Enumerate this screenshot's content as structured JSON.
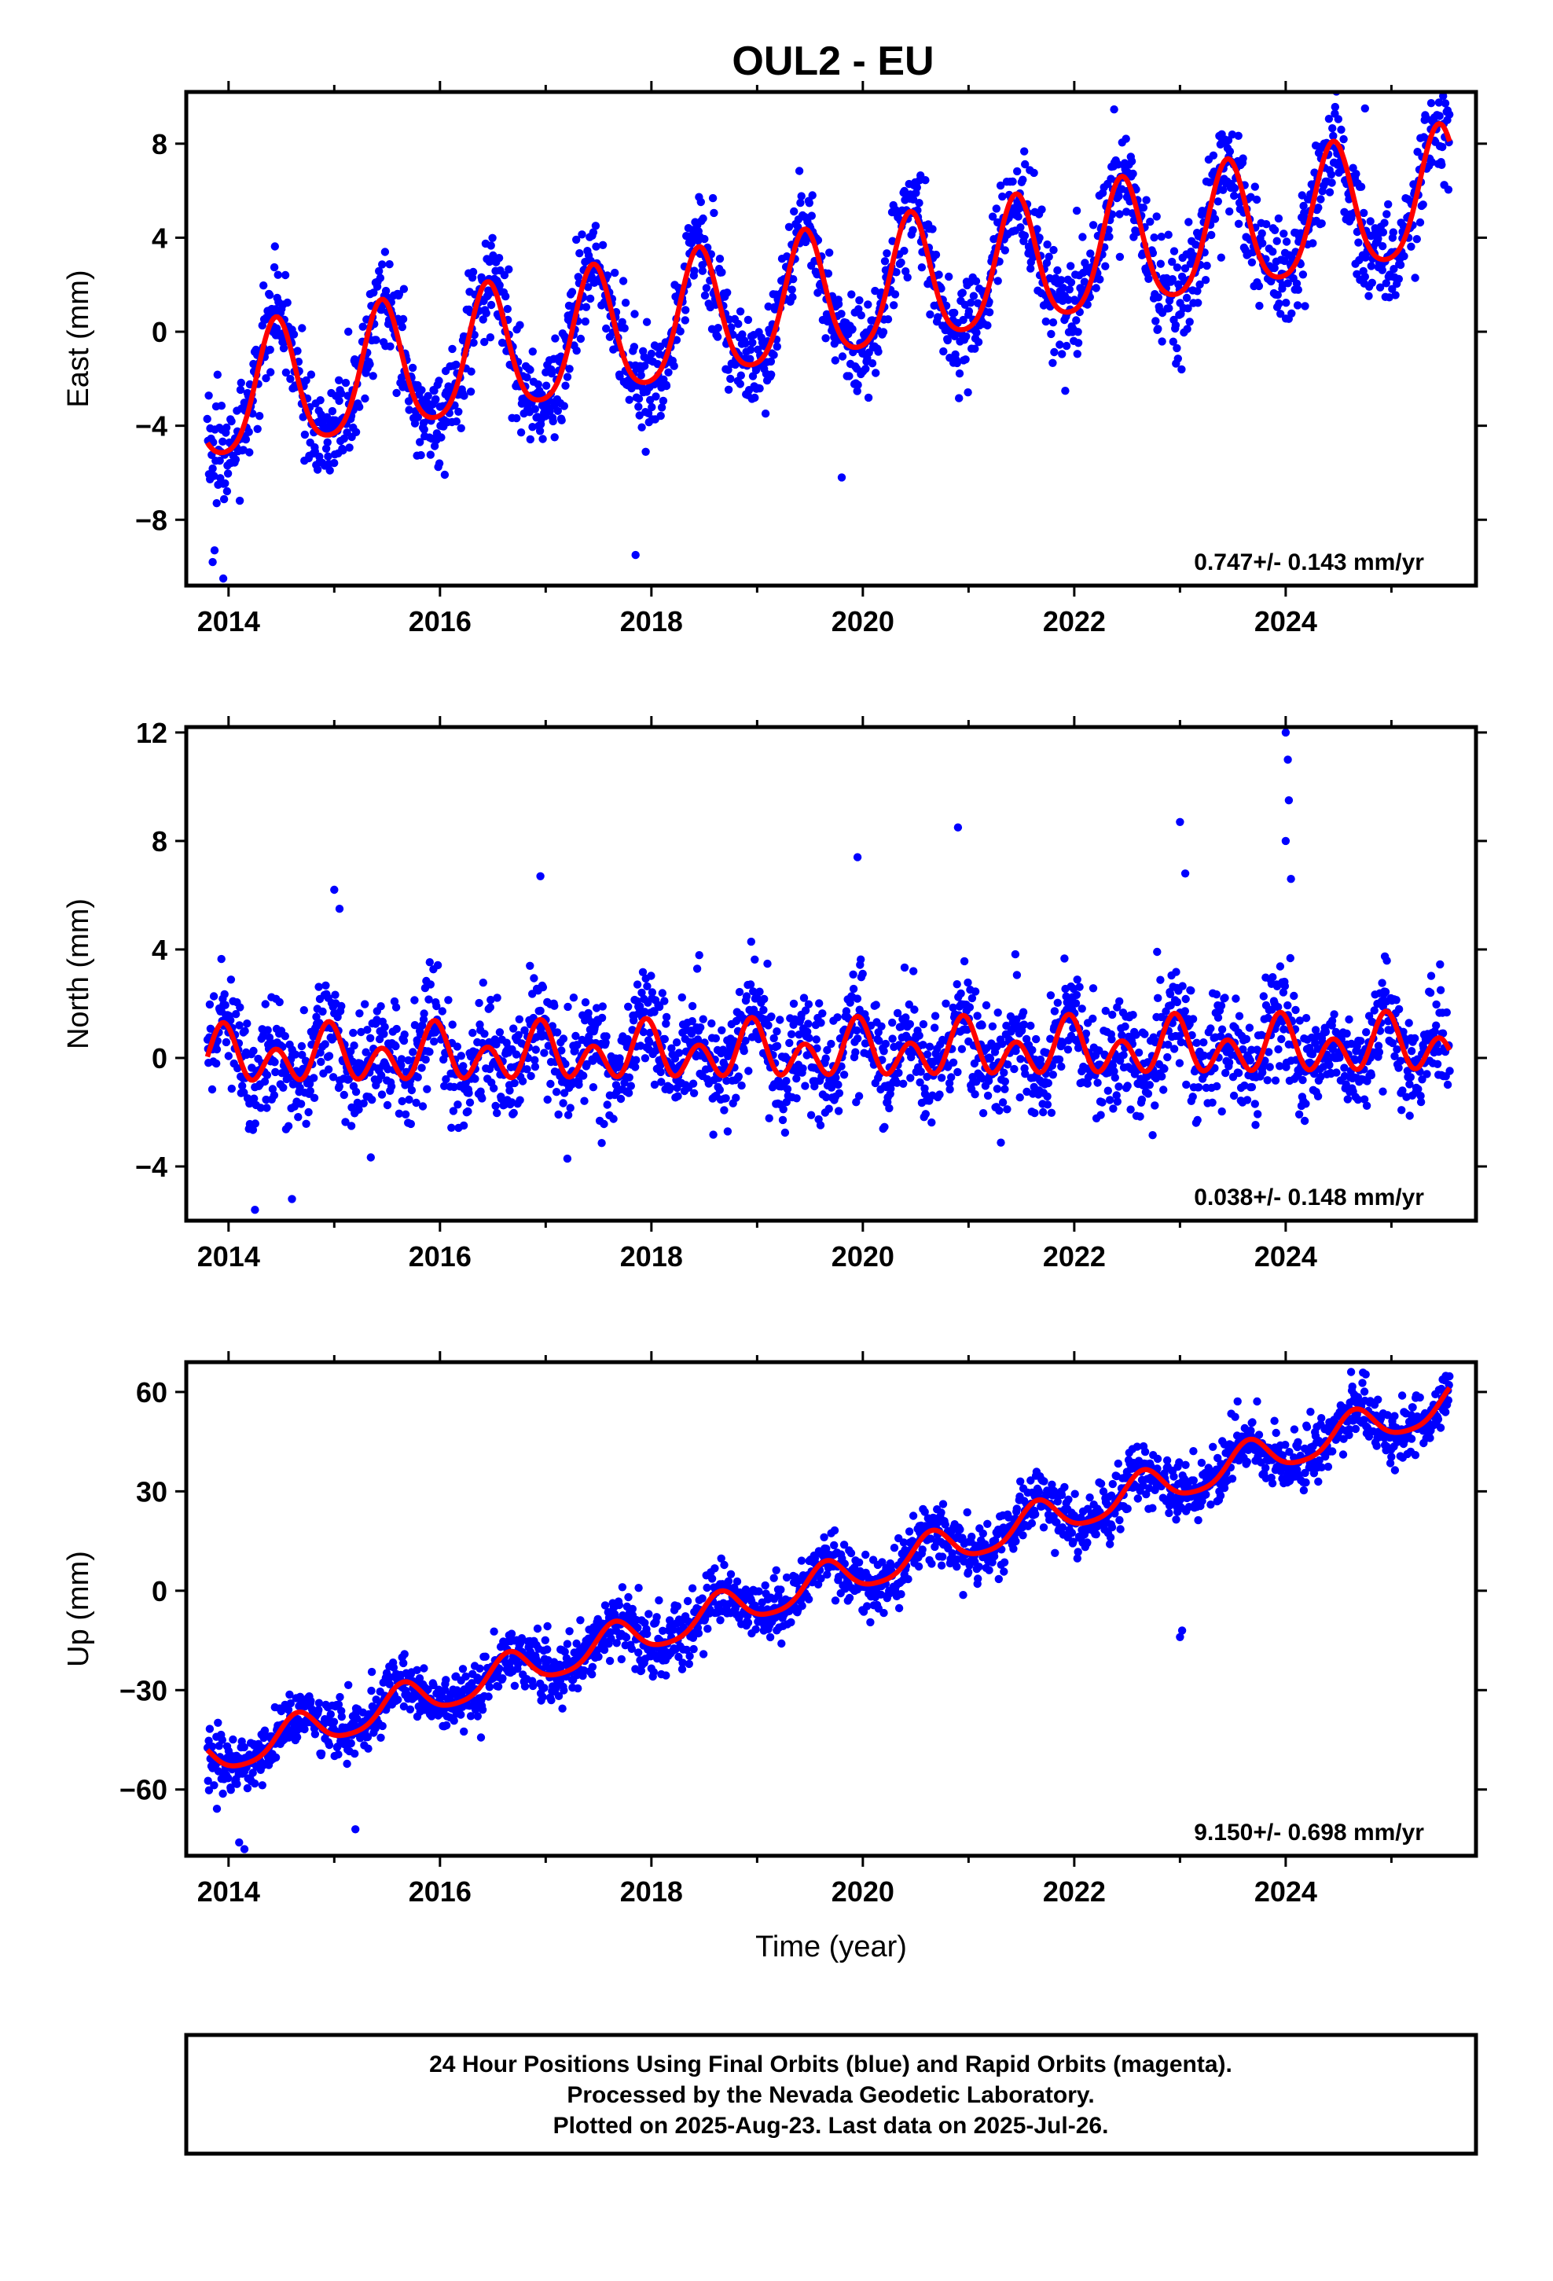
{
  "page_title": "OUL2 - EU",
  "footer": {
    "lines": [
      "24 Hour Positions Using Final Orbits (blue) and Rapid Orbits (magenta).",
      "Processed by the Nevada Geodetic Laboratory.",
      "Plotted on 2025-Aug-23. Last data on 2025-Jul-26."
    ]
  },
  "colors": {
    "points": "#0000ff",
    "fit": "#ff0000",
    "frame": "#000000"
  },
  "chart_data": [
    {
      "type": "scatter",
      "component": "East",
      "title": "OUL2 - EU",
      "xlabel": "",
      "ylabel": "East (mm)",
      "xlim": [
        2013.6,
        2025.8
      ],
      "ylim": [
        -10.8,
        10.2
      ],
      "xticks": [
        2014,
        2016,
        2018,
        2020,
        2022,
        2024
      ],
      "yticks": [
        -8,
        -4,
        0,
        4,
        8
      ],
      "ytick_labels": [
        "−8",
        "−4",
        "0",
        "4",
        "8"
      ],
      "rate_text": "0.747+/- 0.143 mm/yr",
      "series": [
        {
          "kind": "points",
          "x_start": 2013.8,
          "x_end": 2025.55
        },
        {
          "kind": "fit",
          "x_start": 2013.8,
          "x_end": 2025.55
        }
      ],
      "model": {
        "t0": 2013.8,
        "intercept": -3.0,
        "slope": 0.747,
        "annual_amp": 2.7,
        "annual_peak": 0.45,
        "semiannual_amp": 0.45,
        "semiannual_peak": 0.45,
        "scatter_sd": 1.1,
        "outliers": [
          [
            2013.85,
            -9.8
          ],
          [
            2013.95,
            -10.5
          ],
          [
            2017.85,
            -9.5
          ],
          [
            2019.8,
            -6.2
          ],
          [
            2024.75,
            9.5
          ]
        ]
      }
    },
    {
      "type": "scatter",
      "component": "North",
      "xlabel": "",
      "ylabel": "North (mm)",
      "xlim": [
        2013.6,
        2025.8
      ],
      "ylim": [
        -6.0,
        12.2
      ],
      "xticks": [
        2014,
        2016,
        2018,
        2020,
        2022,
        2024
      ],
      "yticks": [
        -4,
        0,
        4,
        8,
        12
      ],
      "ytick_labels": [
        "−4",
        "0",
        "4",
        "8",
        "12"
      ],
      "rate_text": "0.038+/- 0.148 mm/yr",
      "series": [
        {
          "kind": "points",
          "x_start": 2013.8,
          "x_end": 2025.55
        },
        {
          "kind": "fit",
          "x_start": 2013.8,
          "x_end": 2025.55
        }
      ],
      "model": {
        "t0": 2013.8,
        "intercept": 0.0,
        "slope": 0.038,
        "annual_amp": 0.5,
        "annual_peak": 0.95,
        "semiannual_amp": 0.8,
        "semiannual_peak": 0.45,
        "scatter_sd": 1.0,
        "outliers": [
          [
            2015.0,
            6.2
          ],
          [
            2015.05,
            5.5
          ],
          [
            2016.95,
            6.7
          ],
          [
            2019.95,
            7.4
          ],
          [
            2020.9,
            8.5
          ],
          [
            2023.0,
            8.7
          ],
          [
            2023.05,
            6.8
          ],
          [
            2024.0,
            12.0
          ],
          [
            2024.02,
            11.0
          ],
          [
            2024.03,
            9.5
          ],
          [
            2024.0,
            8.0
          ],
          [
            2024.05,
            6.6
          ],
          [
            2014.25,
            -5.6
          ],
          [
            2014.6,
            -5.2
          ]
        ]
      }
    },
    {
      "type": "scatter",
      "component": "Up",
      "xlabel": "Time (year)",
      "ylabel": "Up (mm)",
      "xlim": [
        2013.6,
        2025.8
      ],
      "ylim": [
        -80.0,
        69.0
      ],
      "xticks": [
        2014,
        2016,
        2018,
        2020,
        2022,
        2024
      ],
      "yticks": [
        -60,
        -30,
        0,
        30,
        60
      ],
      "ytick_labels": [
        "−60",
        "−30",
        "0",
        "30",
        "60"
      ],
      "rate_text": "9.150+/- 0.698 mm/yr",
      "series": [
        {
          "kind": "points",
          "x_start": 2013.8,
          "x_end": 2025.55
        },
        {
          "kind": "fit",
          "x_start": 2013.8,
          "x_end": 2025.55
        }
      ],
      "model": {
        "t0": 2013.8,
        "intercept": -51.0,
        "slope": 9.15,
        "annual_amp": 5.5,
        "annual_peak": 0.65,
        "semiannual_amp": 1.0,
        "semiannual_peak": 0.65,
        "scatter_sd": 4.5,
        "outliers": [
          [
            2014.1,
            -76.0
          ],
          [
            2014.15,
            -78.0
          ],
          [
            2015.2,
            -72.0
          ],
          [
            2023.0,
            -14.0
          ],
          [
            2023.02,
            -12.0
          ]
        ]
      }
    }
  ]
}
